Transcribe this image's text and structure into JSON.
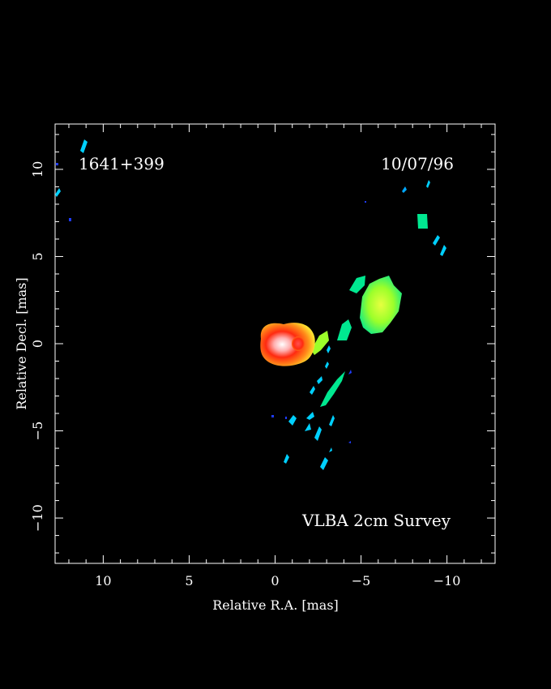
{
  "figure": {
    "source_label": "1641+399",
    "date_label": "10/07/96",
    "survey_label": "VLBA 2cm Survey",
    "xlabel": "Relative R.A. [mas]",
    "ylabel": "Relative Decl. [mas]",
    "x_range": [
      12.8,
      -12.8
    ],
    "y_range": [
      -12.6,
      12.6
    ],
    "x_ticks": [
      10,
      5,
      0,
      -5,
      -10
    ],
    "x_tick_labels": [
      "10",
      "5",
      "0",
      "−5",
      "−10"
    ],
    "y_ticks": [
      10,
      5,
      0,
      -5,
      -10
    ],
    "y_tick_labels": [
      "10",
      "5",
      "0",
      "−5",
      "−10"
    ],
    "background_color": "#000000",
    "frame_color": "#ffffff",
    "colormap": [
      "#1f3cff",
      "#00d0ff",
      "#00e890",
      "#9cff2a",
      "#ffff30",
      "#ff8c1a",
      "#ff2a10",
      "#ff9090",
      "#ffffff"
    ]
  }
}
